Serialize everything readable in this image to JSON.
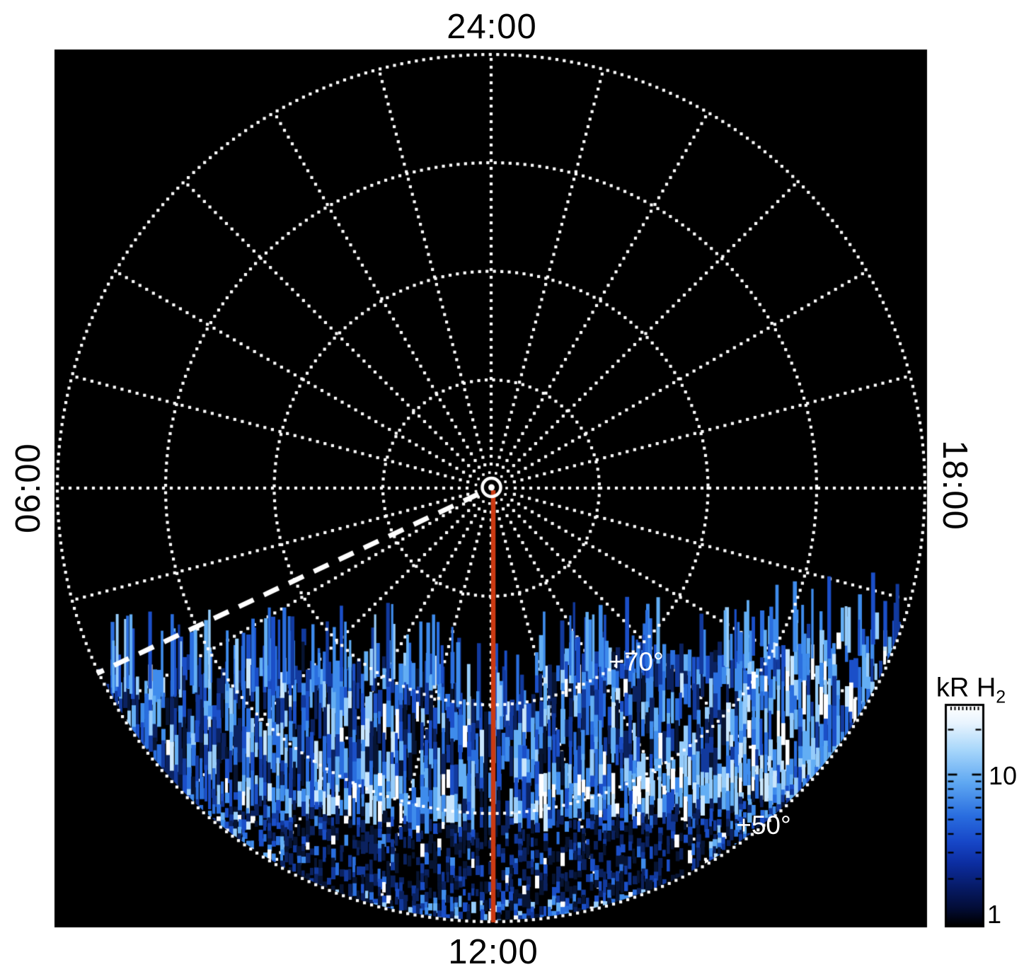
{
  "figure": {
    "top_label": "24:00",
    "bottom_label": "12:00",
    "left_label": "06:00",
    "right_label": "18:00"
  },
  "grid_labels": {
    "lat70": "+70°",
    "lat50": "+50°"
  },
  "colorbar": {
    "title_main": "kR H",
    "title_sub": "2",
    "tick_upper": "10",
    "tick_lower": "1"
  },
  "colors": {
    "background": "#ffffff",
    "plot_bg": "#000000",
    "grid": "#ffffff",
    "text": "#000000",
    "grid_label_text": "#ffffff",
    "red_line": "#cb3a12",
    "dashed_line": "#ffffff",
    "palette": [
      "#071433",
      "#0b2260",
      "#123a9e",
      "#1b4fc8",
      "#2a6ede",
      "#3f8cec",
      "#63aef4",
      "#96ccfa",
      "#c9e6fd",
      "#ffffff"
    ]
  },
  "chart_data": {
    "type": "heatmap",
    "projection": "polar-local-time",
    "title": "",
    "hour_labels": [
      "24:00",
      "06:00",
      "12:00",
      "18:00"
    ],
    "hour_label_positions": [
      "top",
      "left",
      "bottom",
      "right"
    ],
    "radial_grid_lines_every_minutes": 60,
    "latitude_circles_deg": [
      80,
      70,
      60,
      50
    ],
    "outer_latitude_deg": 50,
    "latitude_labels": [
      "+70°",
      "+50°"
    ],
    "colorbar": {
      "title": "kR H2",
      "scale": "log",
      "tick_values": [
        1,
        10
      ],
      "approx_range_kR": [
        1,
        30
      ],
      "gradient_top_to_bottom": [
        "white",
        "light blue",
        "blue",
        "dark navy",
        "black"
      ]
    },
    "annotations": [
      {
        "type": "line",
        "style": "solid",
        "color": "#cb3a12",
        "location": "12:00 meridian from pole to +50°"
      },
      {
        "type": "line",
        "style": "dashed",
        "color": "#ffffff",
        "location": "meridian at about 07:40 local time, pole to +50°"
      },
      {
        "type": "marker",
        "style": "white ring + dot + dotted circle",
        "location": "pole (center)"
      }
    ],
    "emission_map": {
      "units": "kR H2",
      "coverage": "dayside sector only (06:00 through 12:00 to 18:00), latitudes below about +72°",
      "features": [
        {
          "name": "streaked upper edge",
          "lat_deg": [
            68,
            72
          ],
          "intensity_kR": "1-10, vertical streaks"
        },
        {
          "name": "bright band",
          "lat_deg": [
            60,
            67
          ],
          "intensity_kR": "10-30 near 12:00"
        },
        {
          "name": "dark lane",
          "lat_deg": [
            53,
            59
          ],
          "intensity_kR": "<1-2 around 12:00"
        },
        {
          "name": "speckled outer zone",
          "lat_deg": [
            50,
            56
          ],
          "intensity_kR": "mixed 1-30 mosaic"
        },
        {
          "name": "black notch",
          "location": "around 12:00 meridian near +74°",
          "intensity_kR": 0
        }
      ]
    }
  }
}
